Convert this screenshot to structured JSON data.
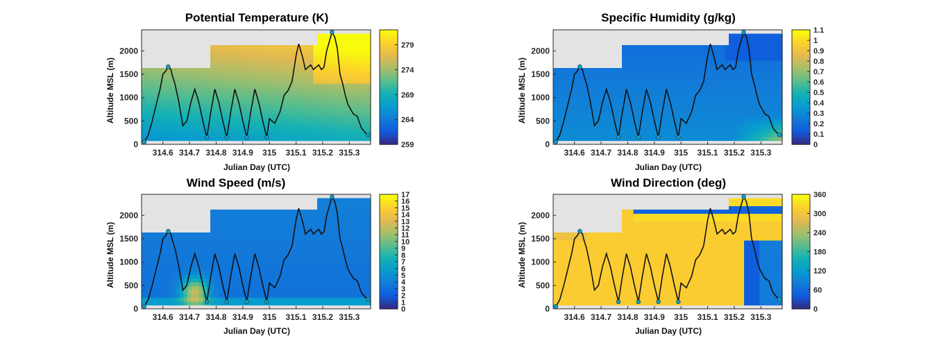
{
  "chart_data": [
    {
      "type": "heatmap",
      "title": "Potential Temperature (K)",
      "xlabel": "Julian Day (UTC)",
      "ylabel": "Altitude MSL (m)",
      "xlim": [
        314.52,
        315.38
      ],
      "ylim": [
        0,
        2450
      ],
      "xticks": [
        314.6,
        314.7,
        314.8,
        314.9,
        315,
        315.1,
        315.2,
        315.3
      ],
      "xtick_labels": [
        "314.6",
        "314.7",
        "314.8",
        "314.9",
        "315",
        "315.1",
        "315.2",
        "315.3"
      ],
      "yticks": [
        0,
        500,
        1000,
        1500,
        2000
      ],
      "ytick_labels": [
        "0",
        "500",
        "1000",
        "1500",
        "2000"
      ],
      "colorbar": {
        "min": 259,
        "max": 282,
        "ticks": [
          259,
          264,
          269,
          274,
          279
        ],
        "tick_labels": [
          "259",
          "264",
          "269",
          "274",
          "279"
        ]
      },
      "colormap": "parula",
      "grid": false
    },
    {
      "type": "heatmap",
      "title": "Specific Humidity (g/kg)",
      "xlabel": "Julian Day (UTC)",
      "ylabel": "Altitude MSL (m)",
      "xlim": [
        314.52,
        315.38
      ],
      "ylim": [
        0,
        2450
      ],
      "xticks": [
        314.6,
        314.7,
        314.8,
        314.9,
        315,
        315.1,
        315.2,
        315.3
      ],
      "xtick_labels": [
        "314.6",
        "314.7",
        "314.8",
        "314.9",
        "315",
        "315.1",
        "315.2",
        "315.3"
      ],
      "yticks": [
        0,
        500,
        1000,
        1500,
        2000
      ],
      "ytick_labels": [
        "0",
        "500",
        "1000",
        "1500",
        "2000"
      ],
      "colorbar": {
        "min": 0,
        "max": 1.1,
        "ticks": [
          0,
          0.1,
          0.2,
          0.3,
          0.4,
          0.5,
          0.6,
          0.7,
          0.8,
          0.9,
          1,
          1.1
        ],
        "tick_labels": [
          "0",
          "0.1",
          "0.2",
          "0.3",
          "0.4",
          "0.5",
          "0.6",
          "0.7",
          "0.8",
          "0.9",
          "1",
          "1.1"
        ]
      },
      "colormap": "parula",
      "grid": false
    },
    {
      "type": "heatmap",
      "title": "Wind Speed (m/s)",
      "xlabel": "Julian Day (UTC)",
      "ylabel": "Altitude MSL (m)",
      "xlim": [
        314.52,
        315.38
      ],
      "ylim": [
        0,
        2450
      ],
      "xticks": [
        314.6,
        314.7,
        314.8,
        314.9,
        315,
        315.1,
        315.2,
        315.3
      ],
      "xtick_labels": [
        "314.6",
        "314.7",
        "314.8",
        "314.9",
        "315",
        "315.1",
        "315.2",
        "315.3"
      ],
      "yticks": [
        0,
        500,
        1000,
        1500,
        2000
      ],
      "ytick_labels": [
        "0",
        "500",
        "1000",
        "1500",
        "2000"
      ],
      "colorbar": {
        "min": 0,
        "max": 17,
        "ticks": [
          0,
          1,
          2,
          3,
          4,
          5,
          6,
          7,
          8,
          9,
          10,
          11,
          12,
          13,
          14,
          15,
          16,
          17
        ],
        "tick_labels": [
          "0",
          "1",
          "2",
          "3",
          "4",
          "5",
          "6",
          "7",
          "8",
          "9",
          "10",
          "11",
          "12",
          "13",
          "14",
          "15",
          "16",
          "17"
        ]
      },
      "colormap": "parula",
      "grid": false
    },
    {
      "type": "heatmap",
      "title": "Wind Direction (deg)",
      "xlabel": "Julian Day (UTC)",
      "ylabel": "Altitude MSL (m)",
      "xlim": [
        314.52,
        315.38
      ],
      "ylim": [
        0,
        2450
      ],
      "xticks": [
        314.6,
        314.7,
        314.8,
        314.9,
        315,
        315.1,
        315.2,
        315.3
      ],
      "xtick_labels": [
        "314.6",
        "314.7",
        "314.8",
        "314.9",
        "315",
        "315.1",
        "315.2",
        "315.3"
      ],
      "yticks": [
        0,
        500,
        1000,
        1500,
        2000
      ],
      "ytick_labels": [
        "0",
        "500",
        "1000",
        "1500",
        "2000"
      ],
      "colorbar": {
        "min": 0,
        "max": 360,
        "ticks": [
          0,
          60,
          120,
          180,
          240,
          300,
          360
        ],
        "tick_labels": [
          "0",
          "60",
          "120",
          "180",
          "240",
          "300",
          "360"
        ]
      },
      "colormap": "parula",
      "grid": false
    }
  ],
  "flight_track": {
    "x": [
      314.53,
      314.545,
      314.56,
      314.575,
      314.59,
      314.6,
      314.61,
      314.62,
      314.63,
      314.635,
      314.645,
      314.66,
      314.675,
      314.69,
      314.705,
      314.72,
      314.735,
      314.75,
      314.765,
      314.78,
      314.795,
      314.81,
      314.825,
      314.84,
      314.855,
      314.87,
      314.885,
      314.9,
      314.915,
      314.93,
      314.945,
      314.96,
      314.975,
      314.99,
      315.0,
      315.02,
      315.04,
      315.055,
      315.07,
      315.085,
      315.1,
      315.11,
      315.125,
      315.135,
      315.145,
      315.155,
      315.165,
      315.175,
      315.185,
      315.195,
      315.205,
      315.215,
      315.225,
      315.235,
      315.245,
      315.255,
      315.265,
      315.275,
      315.285,
      315.295,
      315.305,
      315.315,
      315.33,
      315.345,
      315.36,
      315.37
    ],
    "y": [
      50,
      200,
      500,
      850,
      1200,
      1500,
      1560,
      1660,
      1600,
      1480,
      1300,
      900,
      400,
      500,
      900,
      1180,
      900,
      500,
      150,
      700,
      1180,
      900,
      500,
      150,
      700,
      1180,
      900,
      500,
      150,
      700,
      1180,
      900,
      500,
      150,
      550,
      450,
      700,
      1050,
      1150,
      1350,
      1900,
      2150,
      1850,
      1600,
      1650,
      1700,
      1600,
      1650,
      1700,
      1600,
      1650,
      2000,
      2200,
      2400,
      2300,
      2050,
      1500,
      1300,
      1050,
      850,
      750,
      650,
      600,
      350,
      250,
      200
    ]
  }
}
